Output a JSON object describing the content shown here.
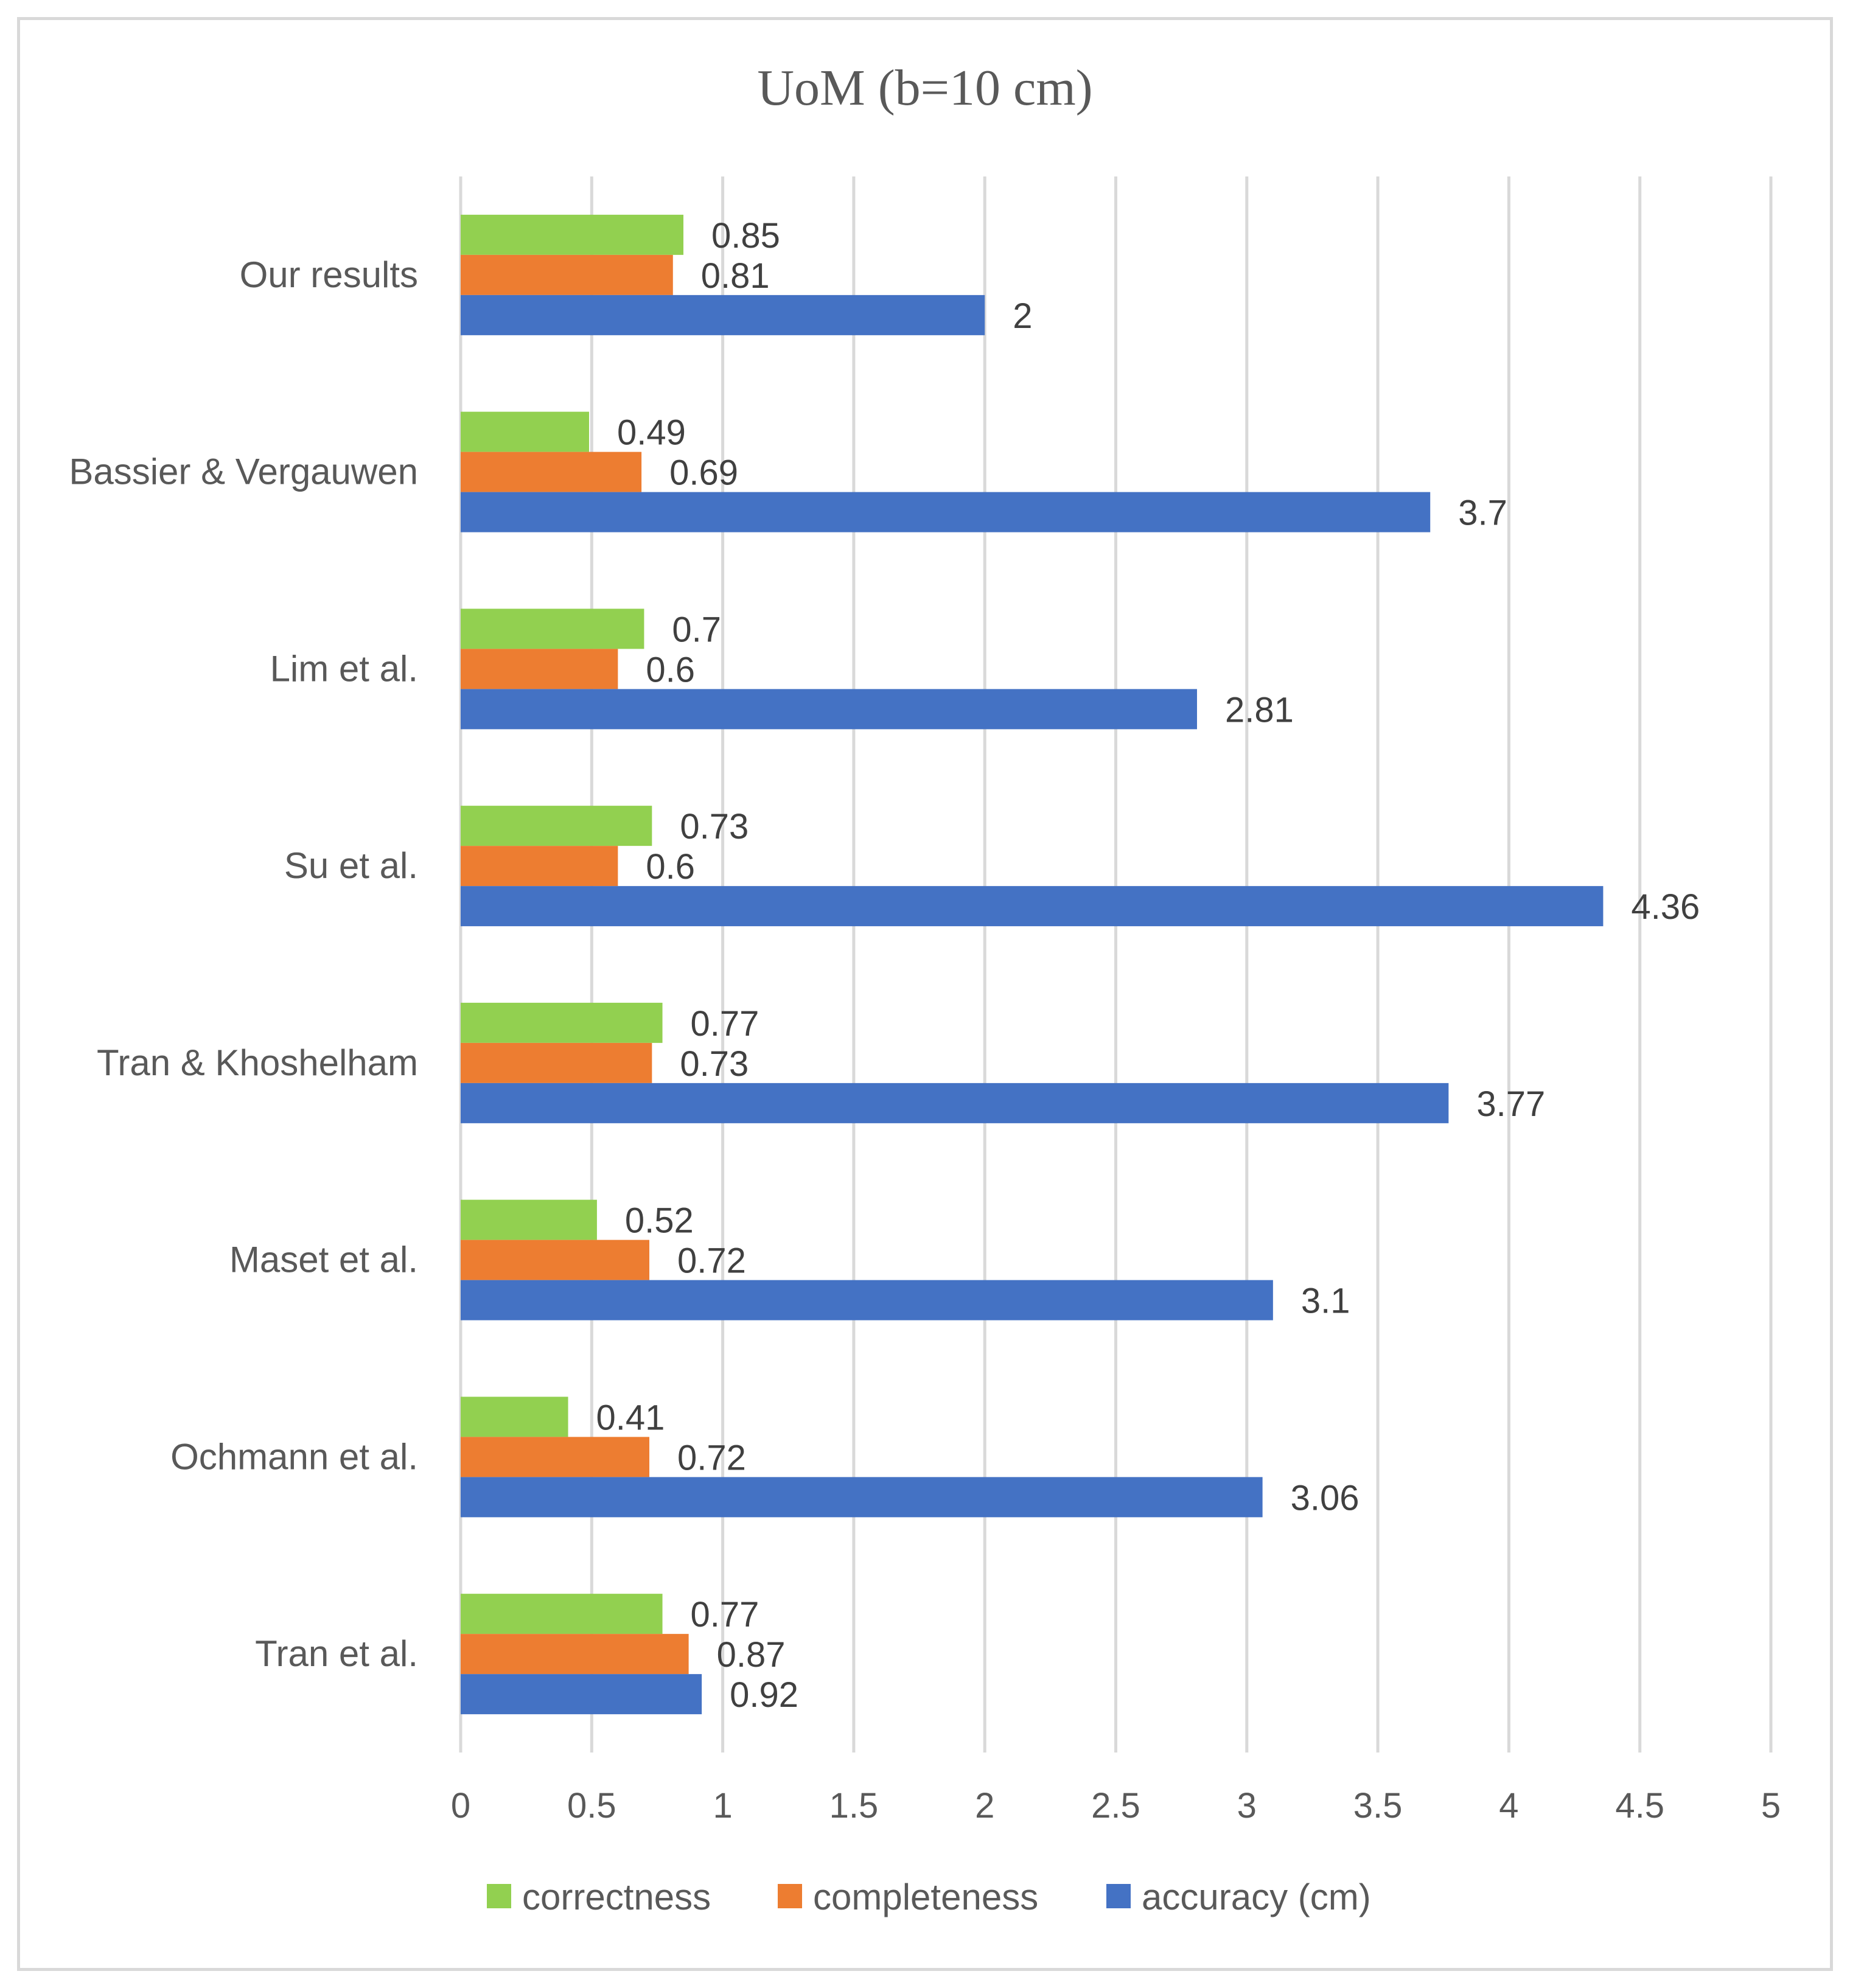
{
  "chart_data": {
    "type": "bar",
    "orientation": "horizontal",
    "title": "UoM (b=10 cm)",
    "categories": [
      "Our results",
      "Bassier & Vergauwen",
      "Lim et al.",
      "Su et al.",
      "Tran & Khoshelham",
      "Maset et al.",
      "Ochmann et al.",
      "Tran et al."
    ],
    "series": [
      {
        "name": "correctness",
        "color": "#92d050",
        "values": [
          0.85,
          0.49,
          0.7,
          0.73,
          0.77,
          0.52,
          0.41,
          0.77
        ],
        "labels": [
          "0.85",
          "0.49",
          "0.7",
          "0.73",
          "0.77",
          "0.52",
          "0.41",
          "0.77"
        ]
      },
      {
        "name": "completeness",
        "color": "#ed7d31",
        "values": [
          0.81,
          0.69,
          0.6,
          0.6,
          0.73,
          0.72,
          0.72,
          0.87
        ],
        "labels": [
          "0.81",
          "0.69",
          "0.6",
          "0.6",
          "0.73",
          "0.72",
          "0.72",
          "0.87"
        ]
      },
      {
        "name": "accuracy (cm)",
        "color": "#4472c4",
        "values": [
          2,
          3.7,
          2.81,
          4.36,
          3.77,
          3.1,
          3.06,
          0.92
        ],
        "labels": [
          "2",
          "3.7",
          "2.81",
          "4.36",
          "3.77",
          "3.1",
          "3.06",
          "0.92"
        ]
      }
    ],
    "xlim": [
      0,
      5
    ],
    "xticks": [
      "0",
      "0.5",
      "1",
      "1.5",
      "2",
      "2.5",
      "3",
      "3.5",
      "4",
      "4.5",
      "5"
    ],
    "grid": "vertical",
    "legend_position": "bottom"
  }
}
